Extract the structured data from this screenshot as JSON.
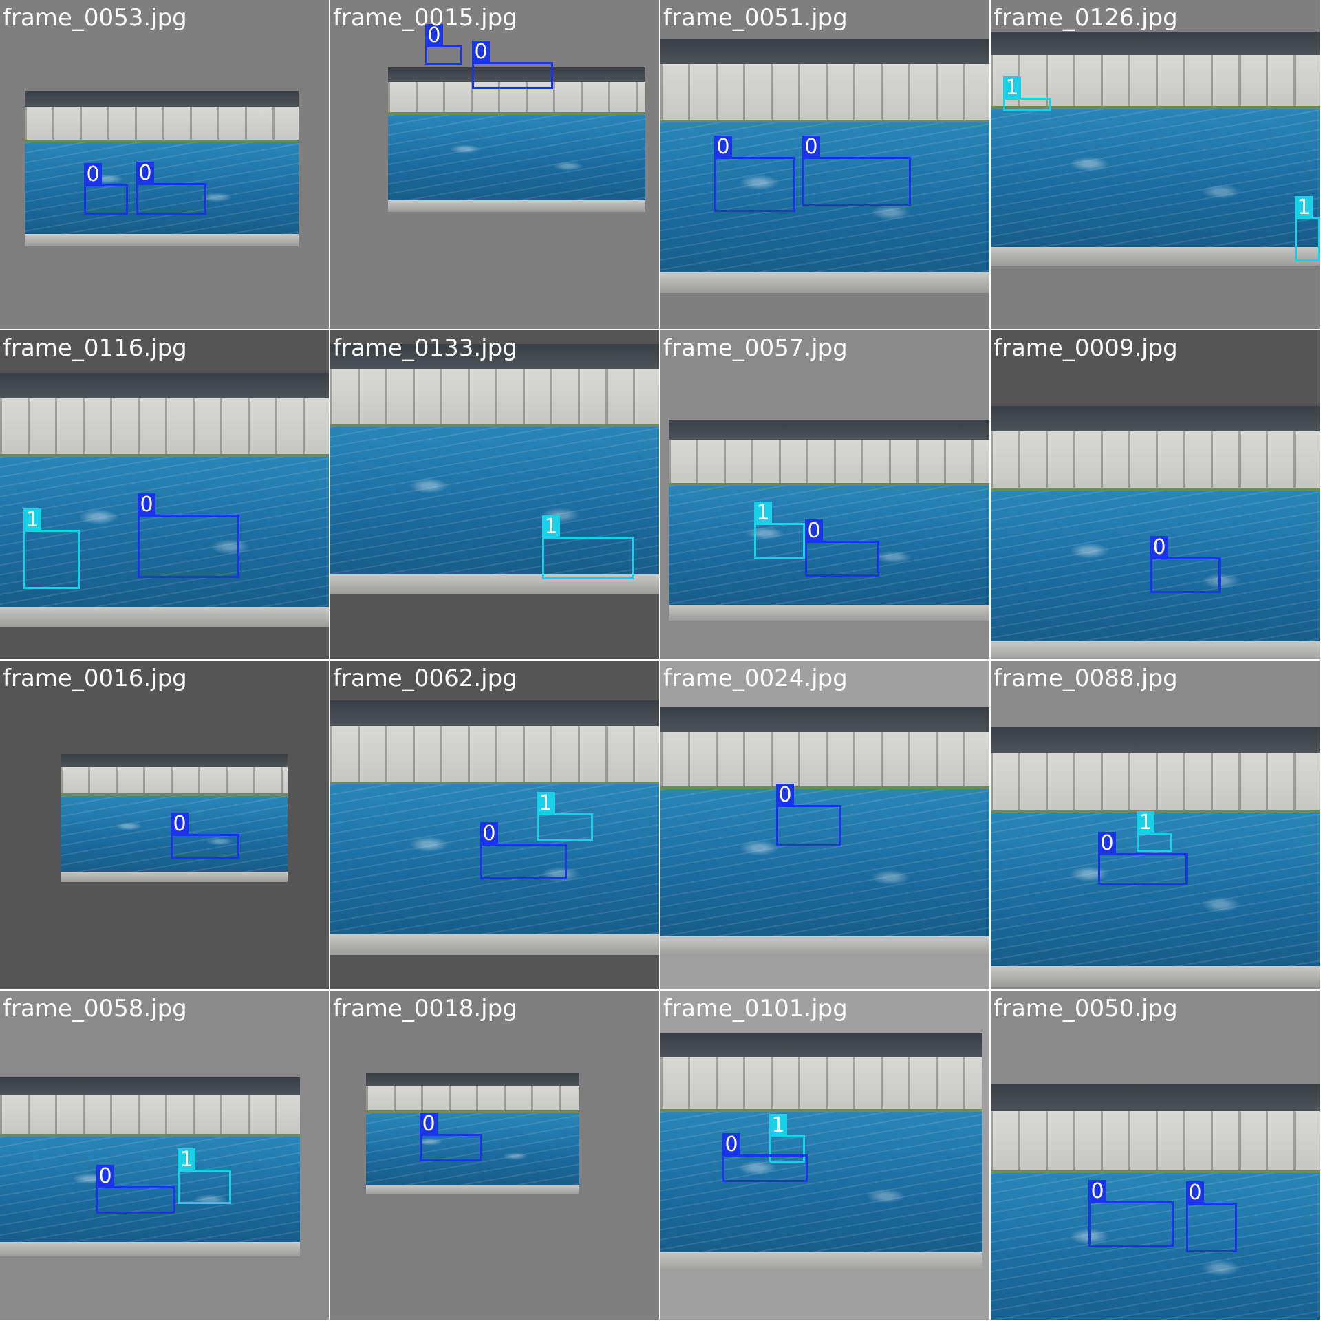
{
  "grid": {
    "tiles": [
      {
        "label": "frame_0053.jpg",
        "boxes": [
          {
            "cls": "0"
          },
          {
            "cls": "0"
          }
        ]
      },
      {
        "label": "frame_0015.jpg",
        "boxes": [
          {
            "cls": "0"
          },
          {
            "cls": "0"
          }
        ]
      },
      {
        "label": "frame_0051.jpg",
        "boxes": [
          {
            "cls": "0"
          },
          {
            "cls": "0"
          }
        ]
      },
      {
        "label": "frame_0126.jpg",
        "boxes": [
          {
            "cls": "1"
          },
          {
            "cls": "1"
          }
        ]
      },
      {
        "label": "frame_0116.jpg",
        "boxes": [
          {
            "cls": "1"
          },
          {
            "cls": "0"
          }
        ]
      },
      {
        "label": "frame_0133.jpg",
        "boxes": [
          {
            "cls": "1"
          }
        ]
      },
      {
        "label": "frame_0057.jpg",
        "boxes": [
          {
            "cls": "1"
          },
          {
            "cls": "0"
          }
        ]
      },
      {
        "label": "frame_0009.jpg",
        "boxes": [
          {
            "cls": "0"
          }
        ]
      },
      {
        "label": "frame_0016.jpg",
        "boxes": [
          {
            "cls": "0"
          }
        ]
      },
      {
        "label": "frame_0062.jpg",
        "boxes": [
          {
            "cls": "1"
          },
          {
            "cls": "0"
          }
        ]
      },
      {
        "label": "frame_0024.jpg",
        "boxes": [
          {
            "cls": "0"
          }
        ]
      },
      {
        "label": "frame_0088.jpg",
        "boxes": [
          {
            "cls": "1"
          },
          {
            "cls": "0"
          }
        ]
      },
      {
        "label": "frame_0058.jpg",
        "boxes": [
          {
            "cls": "1"
          },
          {
            "cls": "0"
          }
        ]
      },
      {
        "label": "frame_0018.jpg",
        "boxes": [
          {
            "cls": "0"
          }
        ]
      },
      {
        "label": "frame_0101.jpg",
        "boxes": [
          {
            "cls": "1"
          },
          {
            "cls": "0"
          }
        ]
      },
      {
        "label": "frame_0050.jpg",
        "boxes": [
          {
            "cls": "0"
          },
          {
            "cls": "0"
          }
        ]
      }
    ]
  },
  "colors": {
    "class_0": "#1a35e8",
    "class_1": "#18d0e8",
    "tile_backgrounds": [
      "#7f7f7f",
      "#7f7f7f",
      "#7f7f7f",
      "#7f7f7f",
      "#555555",
      "#555555",
      "#8a8a8a",
      "#555555",
      "#555555",
      "#555555",
      "#a0a0a0",
      "#8a8a8a",
      "#8a8a8a",
      "#7f7f7f",
      "#a0a0a0",
      "#8a8a8a"
    ]
  }
}
